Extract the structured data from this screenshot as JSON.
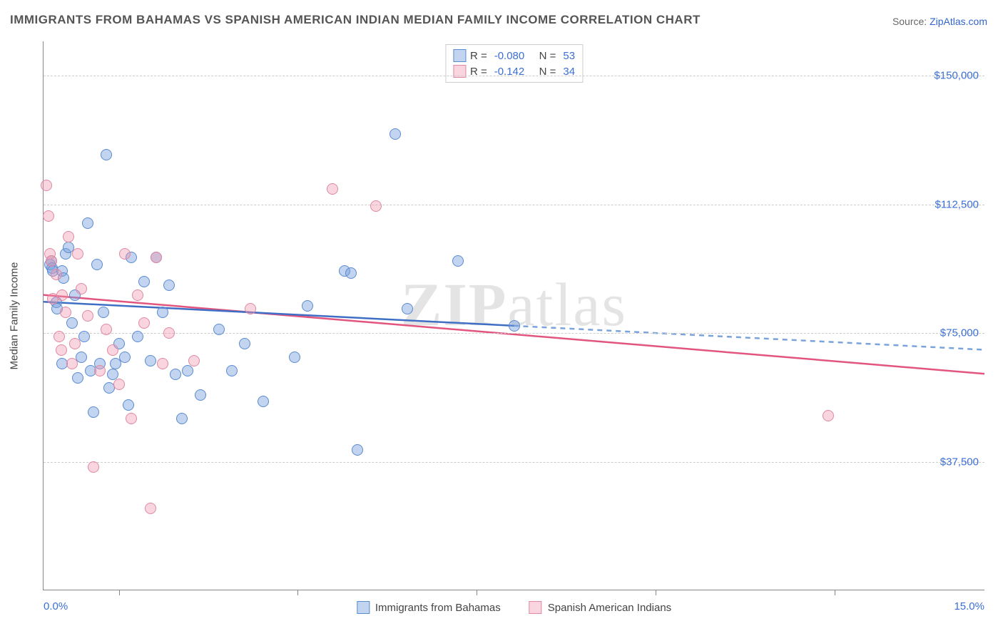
{
  "title": "IMMIGRANTS FROM BAHAMAS VS SPANISH AMERICAN INDIAN MEDIAN FAMILY INCOME CORRELATION CHART",
  "source_label": "Source:",
  "source_name": "ZipAtlas.com",
  "y_axis_label": "Median Family Income",
  "watermark": {
    "part1": "ZIP",
    "part2": "atlas"
  },
  "chart": {
    "type": "scatter",
    "background_color": "#ffffff",
    "grid_color": "#cccccc",
    "axis_color": "#888888",
    "x": {
      "min": 0.0,
      "max": 15.0,
      "min_label": "0.0%",
      "max_label": "15.0%",
      "tick_positions_pct": [
        8,
        27,
        46,
        65,
        84
      ]
    },
    "y": {
      "min": 0,
      "max": 160000,
      "gridlines": [
        {
          "value": 37500,
          "label": "$37,500"
        },
        {
          "value": 75000,
          "label": "$75,000"
        },
        {
          "value": 112500,
          "label": "$112,500"
        },
        {
          "value": 150000,
          "label": "$150,000"
        }
      ]
    },
    "series": [
      {
        "key": "bahamas",
        "label": "Immigrants from Bahamas",
        "fill": "rgba(120,160,220,0.45)",
        "stroke": "#5a8bd0",
        "line_color": "#3f6fc4",
        "dash_color": "#7aa3da",
        "marker_radius": 8,
        "R": "-0.080",
        "N": "53",
        "trend": {
          "x1": 0.0,
          "y1": 84000,
          "x2_solid": 7.5,
          "y2_solid": 77000,
          "x2_dash": 15.0,
          "y2_dash": 70000
        },
        "points": [
          {
            "x": 0.1,
            "y": 95000
          },
          {
            "x": 0.12,
            "y": 96000
          },
          {
            "x": 0.14,
            "y": 94000
          },
          {
            "x": 0.15,
            "y": 93000
          },
          {
            "x": 0.2,
            "y": 84000
          },
          {
            "x": 0.22,
            "y": 82000
          },
          {
            "x": 0.3,
            "y": 93000
          },
          {
            "x": 0.32,
            "y": 91000
          },
          {
            "x": 0.3,
            "y": 66000
          },
          {
            "x": 0.35,
            "y": 98000
          },
          {
            "x": 0.4,
            "y": 100000
          },
          {
            "x": 0.45,
            "y": 78000
          },
          {
            "x": 0.5,
            "y": 86000
          },
          {
            "x": 0.55,
            "y": 62000
          },
          {
            "x": 0.6,
            "y": 68000
          },
          {
            "x": 0.65,
            "y": 74000
          },
          {
            "x": 0.7,
            "y": 107000
          },
          {
            "x": 0.75,
            "y": 64000
          },
          {
            "x": 0.8,
            "y": 52000
          },
          {
            "x": 0.85,
            "y": 95000
          },
          {
            "x": 0.9,
            "y": 66000
          },
          {
            "x": 0.95,
            "y": 81000
          },
          {
            "x": 1.0,
            "y": 127000
          },
          {
            "x": 1.05,
            "y": 59000
          },
          {
            "x": 1.1,
            "y": 63000
          },
          {
            "x": 1.15,
            "y": 66000
          },
          {
            "x": 1.2,
            "y": 72000
          },
          {
            "x": 1.3,
            "y": 68000
          },
          {
            "x": 1.35,
            "y": 54000
          },
          {
            "x": 1.4,
            "y": 97000
          },
          {
            "x": 1.5,
            "y": 74000
          },
          {
            "x": 1.6,
            "y": 90000
          },
          {
            "x": 1.7,
            "y": 67000
          },
          {
            "x": 1.8,
            "y": 97000
          },
          {
            "x": 1.9,
            "y": 81000
          },
          {
            "x": 2.0,
            "y": 89000
          },
          {
            "x": 2.1,
            "y": 63000
          },
          {
            "x": 2.2,
            "y": 50000
          },
          {
            "x": 2.3,
            "y": 64000
          },
          {
            "x": 2.5,
            "y": 57000
          },
          {
            "x": 2.8,
            "y": 76000
          },
          {
            "x": 3.0,
            "y": 64000
          },
          {
            "x": 3.2,
            "y": 72000
          },
          {
            "x": 3.5,
            "y": 55000
          },
          {
            "x": 4.0,
            "y": 68000
          },
          {
            "x": 4.2,
            "y": 83000
          },
          {
            "x": 4.8,
            "y": 93000
          },
          {
            "x": 4.9,
            "y": 92500
          },
          {
            "x": 5.0,
            "y": 41000
          },
          {
            "x": 5.6,
            "y": 133000
          },
          {
            "x": 5.8,
            "y": 82000
          },
          {
            "x": 6.6,
            "y": 96000
          },
          {
            "x": 7.5,
            "y": 77000
          }
        ]
      },
      {
        "key": "spanish",
        "label": "Spanish American Indians",
        "fill": "rgba(240,150,175,0.40)",
        "stroke": "#e088a0",
        "line_color": "#e2557f",
        "marker_radius": 8,
        "R": "-0.142",
        "N": "34",
        "trend": {
          "x1": 0.0,
          "y1": 86000,
          "x2": 15.0,
          "y2": 63000
        },
        "points": [
          {
            "x": 0.05,
            "y": 118000
          },
          {
            "x": 0.08,
            "y": 109000
          },
          {
            "x": 0.1,
            "y": 98000
          },
          {
            "x": 0.12,
            "y": 96000
          },
          {
            "x": 0.15,
            "y": 85000
          },
          {
            "x": 0.2,
            "y": 92000
          },
          {
            "x": 0.25,
            "y": 74000
          },
          {
            "x": 0.28,
            "y": 70000
          },
          {
            "x": 0.3,
            "y": 86000
          },
          {
            "x": 0.35,
            "y": 81000
          },
          {
            "x": 0.4,
            "y": 103000
          },
          {
            "x": 0.45,
            "y": 66000
          },
          {
            "x": 0.5,
            "y": 72000
          },
          {
            "x": 0.55,
            "y": 98000
          },
          {
            "x": 0.6,
            "y": 88000
          },
          {
            "x": 0.7,
            "y": 80000
          },
          {
            "x": 0.8,
            "y": 36000
          },
          {
            "x": 0.9,
            "y": 64000
          },
          {
            "x": 1.0,
            "y": 76000
          },
          {
            "x": 1.1,
            "y": 70000
          },
          {
            "x": 1.2,
            "y": 60000
          },
          {
            "x": 1.3,
            "y": 98000
          },
          {
            "x": 1.4,
            "y": 50000
          },
          {
            "x": 1.5,
            "y": 86000
          },
          {
            "x": 1.6,
            "y": 78000
          },
          {
            "x": 1.7,
            "y": 24000
          },
          {
            "x": 1.8,
            "y": 97000
          },
          {
            "x": 1.9,
            "y": 66000
          },
          {
            "x": 2.0,
            "y": 75000
          },
          {
            "x": 2.4,
            "y": 67000
          },
          {
            "x": 3.3,
            "y": 82000
          },
          {
            "x": 4.6,
            "y": 117000
          },
          {
            "x": 5.3,
            "y": 112000
          },
          {
            "x": 12.5,
            "y": 51000
          }
        ]
      }
    ]
  },
  "legend_top_labels": {
    "R": "R =",
    "N": "N ="
  }
}
